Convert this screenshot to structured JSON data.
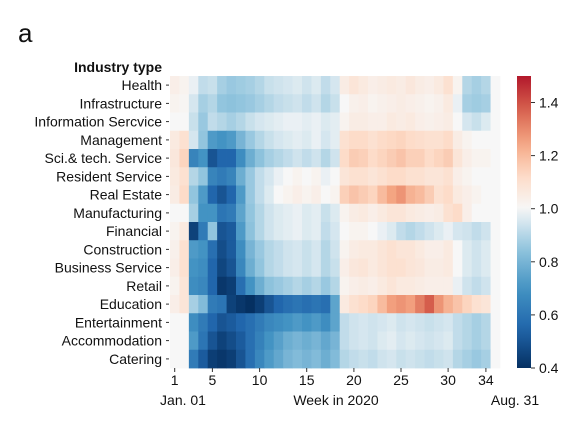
{
  "panel_label": "a",
  "chart_data": {
    "type": "heatmap",
    "title": "",
    "ylabel": "Industry type",
    "xlabel": "Week in 2020",
    "x_start_label": "Jan. 01",
    "x_end_label": "Aug. 31",
    "x": [
      1,
      2,
      3,
      4,
      5,
      6,
      7,
      8,
      9,
      10,
      11,
      12,
      13,
      14,
      15,
      16,
      17,
      18,
      19,
      20,
      21,
      22,
      23,
      24,
      25,
      26,
      27,
      28,
      29,
      30,
      31,
      32,
      33,
      34,
      35
    ],
    "x_ticks": [
      1,
      5,
      10,
      15,
      20,
      25,
      30,
      34
    ],
    "x_tick_labels": [
      "1",
      "5",
      "10",
      "15",
      "20",
      "25",
      "30",
      "34"
    ],
    "categories": [
      "Health",
      "Infrastructure",
      "Information Sercvice",
      "Management",
      "Sci.& tech. Service",
      "Resident Service",
      "Real Estate",
      "Manufacturing",
      "Financial",
      "Construction",
      "Business Service",
      "Retail",
      "Education",
      "Entertainment",
      "Accommodation",
      "Catering"
    ],
    "colorbar": {
      "min": 0.4,
      "max": 1.5,
      "ticks": [
        0.4,
        0.6,
        0.8,
        1.0,
        1.2,
        1.4
      ],
      "tick_labels": [
        "0.4",
        "0.6",
        "0.8",
        "1.0",
        "1.2",
        "1.4"
      ],
      "colormap": "RdBu_r",
      "center": 1.0
    },
    "values": [
      [
        1.04,
        1.02,
        0.98,
        0.92,
        0.93,
        0.88,
        0.86,
        0.87,
        0.88,
        0.9,
        0.93,
        0.94,
        0.95,
        0.96,
        0.94,
        0.96,
        0.92,
        0.95,
        1.05,
        1.08,
        1.06,
        1.04,
        1.05,
        1.06,
        1.05,
        1.07,
        1.05,
        1.04,
        1.06,
        1.1,
        1.02,
        0.9,
        0.88,
        0.9,
        1.0
      ],
      [
        1.02,
        1.01,
        0.95,
        0.88,
        0.9,
        0.85,
        0.84,
        0.85,
        0.86,
        0.88,
        0.9,
        0.92,
        0.93,
        0.94,
        0.92,
        0.94,
        0.9,
        0.93,
        1.0,
        1.03,
        1.04,
        1.02,
        1.03,
        1.04,
        1.05,
        1.04,
        1.03,
        1.02,
        1.03,
        1.06,
        0.98,
        0.88,
        0.87,
        0.88,
        1.0
      ],
      [
        1.0,
        1.0,
        0.93,
        0.86,
        0.92,
        0.9,
        0.88,
        0.9,
        0.93,
        0.95,
        0.96,
        0.97,
        0.98,
        0.98,
        0.97,
        0.98,
        0.96,
        0.97,
        1.02,
        1.05,
        1.05,
        1.04,
        1.04,
        1.06,
        1.05,
        1.06,
        1.04,
        1.03,
        1.04,
        1.05,
        1.0,
        0.95,
        0.93,
        0.96,
        1.0
      ],
      [
        1.06,
        1.1,
        0.95,
        0.85,
        0.72,
        0.7,
        0.72,
        0.8,
        0.86,
        0.9,
        0.93,
        0.95,
        0.96,
        0.97,
        0.96,
        0.98,
        0.95,
        0.97,
        1.1,
        1.12,
        1.12,
        1.1,
        1.12,
        1.13,
        1.14,
        1.12,
        1.11,
        1.1,
        1.1,
        1.12,
        1.05,
        1.02,
        1.0,
        1.0,
        1.0
      ],
      [
        1.07,
        1.14,
        0.65,
        0.7,
        0.5,
        0.55,
        0.55,
        0.68,
        0.78,
        0.84,
        0.88,
        0.9,
        0.92,
        0.94,
        0.92,
        0.94,
        0.9,
        0.94,
        1.12,
        1.16,
        1.15,
        1.12,
        1.14,
        1.16,
        1.18,
        1.15,
        1.15,
        1.12,
        1.14,
        1.16,
        1.08,
        1.04,
        1.02,
        1.02,
        1.0
      ],
      [
        1.06,
        1.1,
        0.9,
        0.85,
        0.65,
        0.62,
        0.65,
        0.78,
        0.86,
        0.92,
        0.95,
        0.98,
        1.0,
        1.02,
        1.0,
        1.02,
        0.98,
        1.0,
        1.08,
        1.1,
        1.1,
        1.08,
        1.1,
        1.12,
        1.12,
        1.1,
        1.1,
        1.08,
        1.08,
        1.1,
        1.04,
        1.02,
        1.0,
        1.0,
        1.0
      ],
      [
        1.05,
        1.12,
        0.85,
        0.72,
        0.55,
        0.5,
        0.55,
        0.72,
        0.86,
        0.92,
        0.96,
        1.0,
        1.02,
        1.04,
        1.02,
        1.04,
        1.0,
        1.02,
        1.15,
        1.18,
        1.16,
        1.14,
        1.2,
        1.25,
        1.28,
        1.22,
        1.2,
        1.16,
        1.1,
        1.12,
        1.06,
        1.04,
        1.02,
        1.0,
        1.0
      ],
      [
        1.0,
        1.0,
        0.88,
        0.7,
        0.7,
        0.6,
        0.62,
        0.75,
        0.85,
        0.9,
        0.94,
        0.96,
        0.97,
        0.98,
        0.96,
        0.97,
        0.93,
        0.96,
        1.02,
        1.05,
        1.06,
        1.04,
        1.06,
        1.08,
        1.08,
        1.06,
        1.05,
        1.04,
        1.05,
        1.1,
        1.12,
        1.04,
        1.0,
        1.0,
        1.0
      ],
      [
        1.02,
        1.06,
        0.45,
        0.62,
        0.85,
        0.5,
        0.52,
        0.72,
        0.84,
        0.9,
        0.94,
        0.96,
        0.97,
        0.98,
        0.96,
        0.97,
        0.92,
        0.95,
        1.0,
        1.02,
        1.02,
        1.0,
        0.98,
        0.96,
        0.92,
        0.9,
        0.92,
        0.94,
        0.96,
        0.98,
        0.95,
        0.94,
        0.92,
        0.94,
        1.0
      ],
      [
        1.03,
        1.1,
        0.72,
        0.7,
        0.58,
        0.48,
        0.52,
        0.68,
        0.8,
        0.86,
        0.9,
        0.92,
        0.94,
        0.95,
        0.93,
        0.95,
        0.9,
        0.94,
        1.02,
        1.05,
        1.06,
        1.06,
        1.08,
        1.1,
        1.08,
        1.08,
        1.06,
        1.04,
        1.04,
        1.06,
        1.0,
        0.96,
        0.94,
        0.96,
        1.0
      ],
      [
        1.04,
        1.1,
        0.7,
        0.68,
        0.55,
        0.46,
        0.5,
        0.66,
        0.78,
        0.85,
        0.9,
        0.92,
        0.94,
        0.95,
        0.93,
        0.95,
        0.9,
        0.93,
        1.04,
        1.07,
        1.08,
        1.06,
        1.08,
        1.1,
        1.1,
        1.08,
        1.07,
        1.05,
        1.05,
        1.06,
        1.0,
        0.96,
        0.94,
        0.96,
        1.0
      ],
      [
        1.02,
        1.08,
        0.68,
        0.66,
        0.55,
        0.42,
        0.44,
        0.58,
        0.7,
        0.78,
        0.84,
        0.86,
        0.88,
        0.9,
        0.88,
        0.9,
        0.86,
        0.9,
        1.02,
        1.04,
        1.05,
        1.04,
        1.06,
        1.08,
        1.06,
        1.06,
        1.05,
        1.04,
        1.04,
        1.04,
        0.98,
        0.94,
        0.92,
        0.94,
        1.0
      ],
      [
        1.04,
        1.08,
        0.88,
        0.82,
        0.62,
        0.6,
        0.45,
        0.42,
        0.4,
        0.44,
        0.5,
        0.55,
        0.58,
        0.6,
        0.58,
        0.6,
        0.58,
        0.75,
        1.06,
        1.1,
        1.12,
        1.14,
        1.2,
        1.26,
        1.28,
        1.26,
        1.32,
        1.38,
        1.28,
        1.22,
        1.18,
        1.14,
        1.1,
        1.08,
        1.0
      ],
      [
        1.0,
        1.0,
        0.68,
        0.62,
        0.55,
        0.5,
        0.52,
        0.55,
        0.58,
        0.62,
        0.66,
        0.68,
        0.7,
        0.72,
        0.7,
        0.72,
        0.68,
        0.75,
        0.92,
        0.94,
        0.95,
        0.94,
        0.95,
        0.96,
        0.94,
        0.95,
        0.94,
        0.93,
        0.94,
        0.95,
        0.92,
        0.9,
        0.88,
        0.9,
        1.0
      ],
      [
        1.0,
        1.0,
        0.72,
        0.6,
        0.5,
        0.45,
        0.48,
        0.52,
        0.58,
        0.64,
        0.7,
        0.74,
        0.78,
        0.8,
        0.78,
        0.8,
        0.76,
        0.8,
        0.92,
        0.94,
        0.95,
        0.94,
        0.96,
        0.97,
        0.95,
        0.96,
        0.95,
        0.94,
        0.95,
        0.96,
        0.92,
        0.9,
        0.88,
        0.9,
        1.0
      ],
      [
        1.0,
        1.0,
        0.62,
        0.52,
        0.44,
        0.42,
        0.44,
        0.5,
        0.58,
        0.66,
        0.72,
        0.76,
        0.8,
        0.82,
        0.8,
        0.82,
        0.78,
        0.82,
        0.9,
        0.92,
        0.93,
        0.92,
        0.94,
        0.95,
        0.93,
        0.94,
        0.93,
        0.92,
        0.93,
        0.94,
        0.9,
        0.88,
        0.86,
        0.88,
        1.0
      ]
    ]
  }
}
